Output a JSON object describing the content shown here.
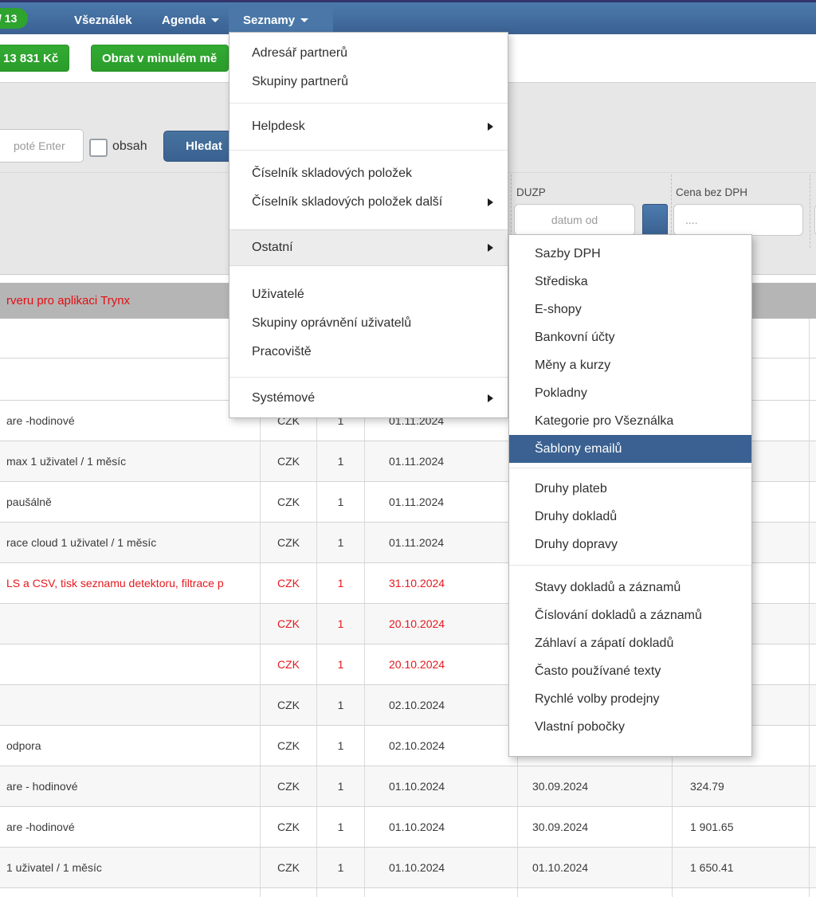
{
  "colors": {
    "accent_blue": "#3a6191",
    "green": "#2ea32e",
    "alert_red": "#e30e13",
    "selected_row_gray": "#b5b5b5"
  },
  "navbar": {
    "badge": "/ 13",
    "item_vseznalek": "Všeználek",
    "item_agenda": "Agenda",
    "item_seznamy": "Seznamy"
  },
  "toolbar": {
    "balance_button": "13 831 Kč",
    "turnover_button": "Obrat v minulém mě"
  },
  "search": {
    "input_placeholder": "poté Enter",
    "checkbox_label": "obsah",
    "search_button": "Hledat"
  },
  "filters": {
    "duzp_label": "DUZP",
    "duzp_placeholder": "datum od",
    "price_label": "Cena bez DPH",
    "price_placeholder": "...."
  },
  "notice": {
    "text": "rveru pro aplikaci Trynx"
  },
  "menu": {
    "sections": [
      {
        "items": [
          {
            "label": "Adresář partnerů"
          },
          {
            "label": "Skupiny partnerů"
          }
        ]
      },
      {
        "items": [
          {
            "label": "Helpdesk",
            "arrow": true
          }
        ]
      },
      {
        "items": [
          {
            "label": "Číselník skladových položek"
          },
          {
            "label": "Číselník skladových položek další",
            "arrow": true
          }
        ]
      },
      {
        "ostatni": true,
        "items": [
          {
            "label": "Ostatní",
            "arrow": true,
            "state": "open"
          }
        ]
      },
      {
        "items": [
          {
            "label": "Uživatelé"
          },
          {
            "label": "Skupiny oprávnění uživatelů"
          },
          {
            "label": "Pracoviště"
          }
        ]
      },
      {
        "items": [
          {
            "label": "Systémové",
            "arrow": true
          }
        ]
      }
    ]
  },
  "submenu": {
    "sections": [
      {
        "items": [
          {
            "label": "Sazby DPH"
          },
          {
            "label": "Střediska"
          },
          {
            "label": "E-shopy"
          },
          {
            "label": "Bankovní účty"
          },
          {
            "label": "Měny a kurzy"
          },
          {
            "label": "Pokladny"
          },
          {
            "label": "Kategorie pro Všeználka"
          },
          {
            "label": "Šablony emailů",
            "state": "selected"
          }
        ]
      },
      {
        "items": [
          {
            "label": "Druhy plateb"
          },
          {
            "label": "Druhy dokladů"
          },
          {
            "label": "Druhy dopravy"
          }
        ]
      },
      {
        "items": [
          {
            "label": "Stavy dokladů a záznamů"
          },
          {
            "label": "Číslování dokladů a záznamů"
          },
          {
            "label": "Záhlaví a zápatí dokladů"
          },
          {
            "label": "Často používané texty"
          },
          {
            "label": "Rychlé volby prodejny"
          },
          {
            "label": "Vlastní pobočky"
          }
        ]
      }
    ]
  },
  "table": {
    "rows": [
      {
        "name": "are -hodinové",
        "currency": "CZK",
        "qty": "1",
        "date": "01.11.2024",
        "duzp": "",
        "price": "",
        "red": false
      },
      {
        "name": "max 1 uživatel / 1 měsíc",
        "currency": "CZK",
        "qty": "1",
        "date": "01.11.2024",
        "duzp": "",
        "price": "",
        "red": false
      },
      {
        "name": "paušálně",
        "currency": "CZK",
        "qty": "1",
        "date": "01.11.2024",
        "duzp": "",
        "price": "",
        "red": false
      },
      {
        "name": "race cloud 1 uživatel / 1 měsíc",
        "currency": "CZK",
        "qty": "1",
        "date": "01.11.2024",
        "duzp": "",
        "price": "",
        "red": false
      },
      {
        "name": "LS a CSV, tisk seznamu detektoru, filtrace p",
        "currency": "CZK",
        "qty": "1",
        "date": "31.10.2024",
        "duzp": "",
        "price": "",
        "red": true
      },
      {
        "name": "",
        "currency": "CZK",
        "qty": "1",
        "date": "20.10.2024",
        "duzp": "",
        "price": "",
        "red": true
      },
      {
        "name": "",
        "currency": "CZK",
        "qty": "1",
        "date": "20.10.2024",
        "duzp": "",
        "price": "",
        "red": true
      },
      {
        "name": "",
        "currency": "CZK",
        "qty": "1",
        "date": "02.10.2024",
        "duzp": "",
        "price": "",
        "red": false
      },
      {
        "name": "odpora",
        "currency": "CZK",
        "qty": "1",
        "date": "02.10.2024",
        "duzp": "",
        "price": "",
        "red": false
      },
      {
        "name": "are - hodinové",
        "currency": "CZK",
        "qty": "1",
        "date": "01.10.2024",
        "duzp": "30.09.2024",
        "price": "324.79",
        "red": false
      },
      {
        "name": "are -hodinové",
        "currency": "CZK",
        "qty": "1",
        "date": "01.10.2024",
        "duzp": "30.09.2024",
        "price": "1 901.65",
        "red": false
      },
      {
        "name": "1 uživatel / 1 měsíc",
        "currency": "CZK",
        "qty": "1",
        "date": "01.10.2024",
        "duzp": "01.10.2024",
        "price": "1 650.41",
        "red": false
      }
    ]
  }
}
